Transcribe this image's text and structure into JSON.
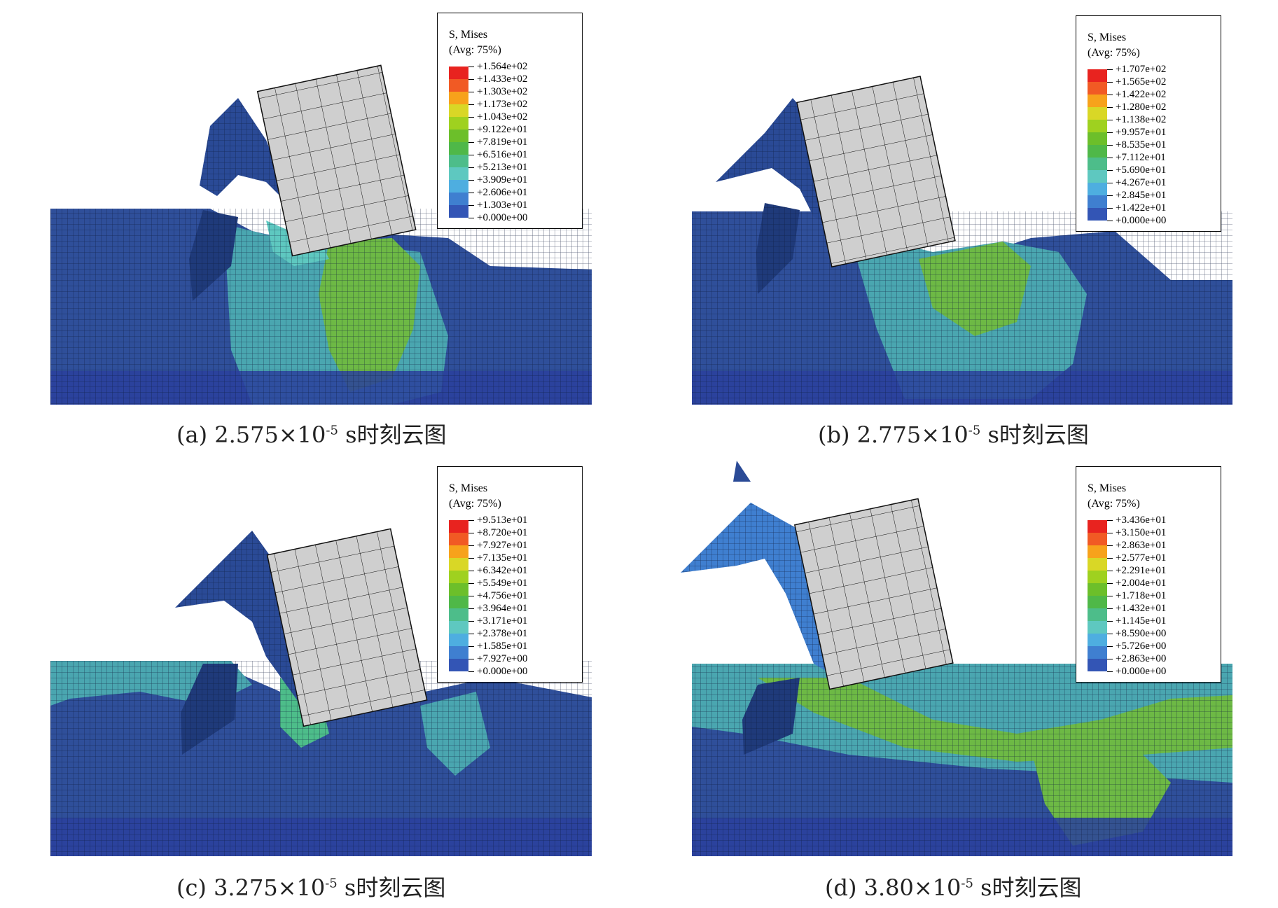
{
  "legend_common": {
    "title": "S, Mises",
    "subtitle": "(Avg: 75%)"
  },
  "colors": [
    "#e8231f",
    "#f15a24",
    "#f7a21b",
    "#d9d726",
    "#9fd11f",
    "#6cbf2a",
    "#4fb848",
    "#4dbd8a",
    "#5ec8c0",
    "#4eaee0",
    "#3f7fd0",
    "#3355b5",
    "#2a3f9e"
  ],
  "panels": [
    {
      "id": "a",
      "caption_prefix": "(a) 2.575×10",
      "caption_exp": "-5",
      "caption_suffix": " s时刻云图",
      "legend_values": [
        "+1.564e+02",
        "+1.433e+02",
        "+1.303e+02",
        "+1.173e+02",
        "+1.043e+02",
        "+9.122e+01",
        "+7.819e+01",
        "+6.516e+01",
        "+5.213e+01",
        "+3.909e+01",
        "+2.606e+01",
        "+1.303e+01",
        "+0.000e+00"
      ]
    },
    {
      "id": "b",
      "caption_prefix": "(b) 2.775×10",
      "caption_exp": "-5",
      "caption_suffix": " s时刻云图",
      "legend_values": [
        "+1.707e+02",
        "+1.565e+02",
        "+1.422e+02",
        "+1.280e+02",
        "+1.138e+02",
        "+9.957e+01",
        "+8.535e+01",
        "+7.112e+01",
        "+5.690e+01",
        "+4.267e+01",
        "+2.845e+01",
        "+1.422e+01",
        "+0.000e+00"
      ]
    },
    {
      "id": "c",
      "caption_prefix": "(c) 3.275×10",
      "caption_exp": "-5",
      "caption_suffix": " s时刻云图",
      "legend_values": [
        "+9.513e+01",
        "+8.720e+01",
        "+7.927e+01",
        "+7.135e+01",
        "+6.342e+01",
        "+5.549e+01",
        "+4.756e+01",
        "+3.964e+01",
        "+3.171e+01",
        "+2.378e+01",
        "+1.585e+01",
        "+7.927e+00",
        "+0.000e+00"
      ]
    },
    {
      "id": "d",
      "caption_prefix": "(d) 3.80×10",
      "caption_exp": "-5",
      "caption_suffix": " s时刻云图",
      "legend_values": [
        "+3.436e+01",
        "+3.150e+01",
        "+2.863e+01",
        "+2.577e+01",
        "+2.291e+01",
        "+2.004e+01",
        "+1.718e+01",
        "+1.432e+01",
        "+1.145e+01",
        "+8.590e+00",
        "+5.726e+00",
        "+2.863e+00",
        "+0.000e+00"
      ]
    }
  ]
}
